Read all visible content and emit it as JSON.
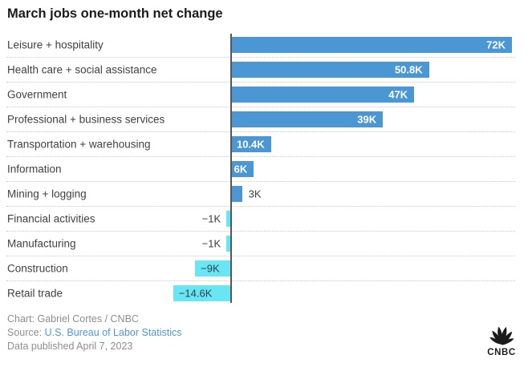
{
  "title": "March jobs one-month net change",
  "chart_data": {
    "type": "bar",
    "orientation": "horizontal",
    "title": "March jobs one-month net change",
    "unit": "thousands of jobs (K)",
    "xlim": [
      -14.6,
      72
    ],
    "grid": "dotted row separators",
    "categories": [
      "Leisure + hospitality",
      "Health care + social assistance",
      "Government",
      "Professional + business services",
      "Transportation + warehousing",
      "Information",
      "Mining + logging",
      "Financial activities",
      "Manufacturing",
      "Construction",
      "Retail trade"
    ],
    "values": [
      72,
      50.8,
      47,
      39,
      10.4,
      6,
      3,
      -1,
      -1,
      -9,
      -14.6
    ],
    "value_labels": [
      "72K",
      "50.8K",
      "47K",
      "39K",
      "10.4K",
      "6K",
      "3K",
      "−1K",
      "−1K",
      "−9K",
      "−14.6K"
    ],
    "colors": {
      "positive_bar": "#4a97d4",
      "negative_bar": "#68e6f4",
      "axis_line": "#55565a",
      "inside_positive_label": "#ffffff",
      "inside_negative_label": "#2f4249",
      "outside_label": "#3d3d3d"
    }
  },
  "footer": {
    "credit": "Chart: Gabriel Cortes / CNBC",
    "source_label": "Source:",
    "source_link": "U.S. Bureau of Labor Statistics",
    "published": "Data published April 7, 2023"
  },
  "logo": {
    "name": "CNBC",
    "text": "CNBC"
  }
}
